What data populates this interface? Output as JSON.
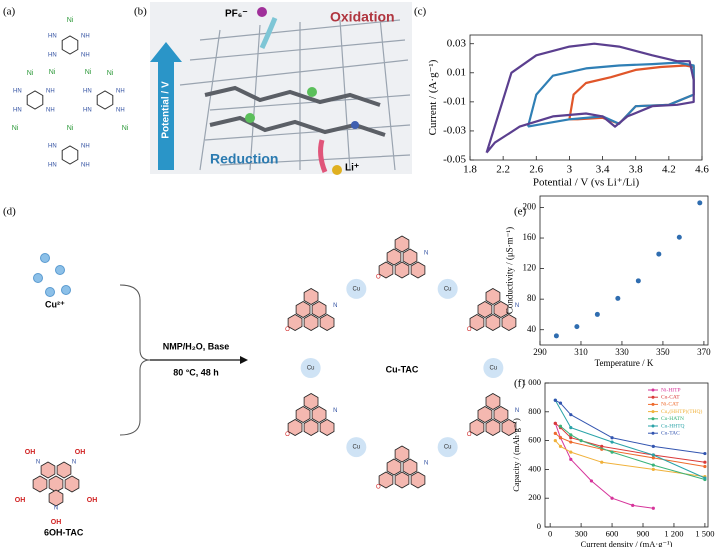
{
  "panels": {
    "a": {
      "label": "(a)",
      "ni": "Ni",
      "nh": "NH",
      "hn": "HN"
    },
    "b": {
      "label": "(b)",
      "anion": "PF₆⁻",
      "oxidation": "Oxidation",
      "axis": "Potential / V",
      "reduction": "Reduction",
      "cation": "Li⁺"
    },
    "c": {
      "label": "(c)"
    },
    "d": {
      "label": "(d)",
      "ion": "Cu²⁺",
      "ligand": "6OH-TAC",
      "conditions": [
        "NMP/H₂O, Base",
        "80 °C, 48 h"
      ],
      "product": "Cu-TAC",
      "oh": "OH",
      "n": "N",
      "cu": "Cu",
      "o": "O"
    },
    "e": {
      "label": "(e)"
    },
    "f": {
      "label": "(f)"
    }
  },
  "chart_data": [
    {
      "type": "line",
      "xlabel": "Potential / V (vs Li⁺/Li)",
      "ylabel": "Current / (A·g⁻¹)",
      "xlim": [
        1.8,
        4.6
      ],
      "ylim": [
        -0.05,
        0.036
      ],
      "xticks": [
        1.8,
        2.2,
        2.6,
        3,
        3.4,
        3.8,
        4.2,
        4.6
      ],
      "yticks": [
        -0.05,
        -0.03,
        -0.01,
        0.01,
        0.03
      ],
      "series": [
        {
          "color": "#e0562a",
          "x": [
            3.0,
            3.05,
            3.2,
            3.5,
            3.8,
            4.1,
            4.4,
            4.5,
            4.5,
            4.2,
            3.8,
            3.6,
            3.4,
            3.1,
            3.0
          ],
          "values": [
            -0.022,
            -0.005,
            0.003,
            0.007,
            0.012,
            0.014,
            0.015,
            0.014,
            -0.005,
            -0.012,
            -0.013,
            -0.025,
            -0.021,
            -0.022,
            -0.022
          ]
        },
        {
          "color": "#2f7fb5",
          "x": [
            2.5,
            2.6,
            2.8,
            3.2,
            3.6,
            4.0,
            4.3,
            4.5,
            4.5,
            4.2,
            3.8,
            3.6,
            3.4,
            3.0,
            2.6,
            2.5
          ],
          "values": [
            -0.027,
            -0.005,
            0.008,
            0.013,
            0.015,
            0.016,
            0.017,
            0.015,
            -0.005,
            -0.012,
            -0.013,
            -0.025,
            -0.02,
            -0.022,
            -0.026,
            -0.027
          ]
        },
        {
          "color": "#5b3f8f",
          "x": [
            2.0,
            2.3,
            2.6,
            3.0,
            3.3,
            3.6,
            4.0,
            4.3,
            4.45,
            4.5,
            4.5,
            4.3,
            4.0,
            3.7,
            3.55,
            3.4,
            3.2,
            2.8,
            2.4,
            2.1,
            2.0
          ],
          "values": [
            -0.045,
            0.01,
            0.022,
            0.028,
            0.03,
            0.028,
            0.022,
            0.018,
            0.018,
            0.005,
            -0.01,
            -0.012,
            -0.013,
            -0.02,
            -0.027,
            -0.02,
            -0.018,
            -0.02,
            -0.027,
            -0.038,
            -0.045
          ]
        }
      ]
    },
    {
      "type": "scatter",
      "xlabel": "Temperature / K",
      "ylabel": "Conductivity / (μS·m⁻¹)",
      "color": "#2f6db0",
      "xlim": [
        290,
        372
      ],
      "ylim": [
        20,
        215
      ],
      "xticks": [
        290,
        310,
        330,
        350,
        370
      ],
      "yticks": [
        40,
        80,
        120,
        160,
        200
      ],
      "x": [
        298,
        308,
        318,
        328,
        338,
        348,
        358,
        368
      ],
      "values": [
        32,
        44,
        60,
        81,
        104,
        139,
        161,
        206
      ]
    },
    {
      "type": "line",
      "xlabel": "Current density / (mA·g⁻¹)",
      "ylabel": "Capacity / (mAh·g⁻¹)",
      "legend": "upper right",
      "xlim": [
        -50,
        1530
      ],
      "ylim": [
        0,
        1000
      ],
      "xticks": [
        0,
        300,
        600,
        900,
        {
          "value": 1200,
          "label": "1 200"
        },
        {
          "value": 1500,
          "label": "1 500"
        }
      ],
      "yticks": [
        0,
        200,
        400,
        600,
        800,
        {
          "value": 1000,
          "label": "1 000"
        }
      ],
      "series": [
        {
          "name": "Ni-HITP",
          "color": "#d6339a",
          "marker": true,
          "x": [
            50,
            100,
            200,
            400,
            600,
            800,
            1000
          ],
          "values": [
            720,
            620,
            470,
            320,
            200,
            150,
            130
          ]
        },
        {
          "name": "Cu-CAT",
          "color": "#d93a3a",
          "marker": true,
          "x": [
            50,
            100,
            200,
            500,
            1000,
            1500
          ],
          "values": [
            720,
            690,
            620,
            560,
            500,
            450
          ]
        },
        {
          "name": "Ni-CAT",
          "color": "#ee6a2c",
          "marker": true,
          "x": [
            50,
            100,
            200,
            500,
            1000,
            1500
          ],
          "values": [
            650,
            620,
            590,
            540,
            480,
            420
          ]
        },
        {
          "name": "Cu₃(HHTP)(THQ)",
          "color": "#f0b13a",
          "marker": true,
          "x": [
            50,
            100,
            200,
            500,
            1000,
            1500
          ],
          "values": [
            600,
            560,
            520,
            450,
            400,
            350
          ]
        },
        {
          "name": "Cu-HATN",
          "color": "#3ab37a",
          "marker": true,
          "x": [
            100,
            200,
            300,
            600,
            1000,
            1500
          ],
          "values": [
            700,
            640,
            600,
            520,
            430,
            330
          ]
        },
        {
          "name": "Cu-HHTQ",
          "color": "#2aa3a8",
          "marker": true,
          "x": [
            50,
            200,
            600,
            1000,
            1500
          ],
          "values": [
            880,
            690,
            590,
            500,
            340
          ]
        },
        {
          "name": "Cu-TAC",
          "color": "#3355b0",
          "marker": true,
          "x": [
            50,
            100,
            200,
            600,
            1000,
            1500
          ],
          "values": [
            880,
            860,
            780,
            620,
            560,
            510
          ]
        }
      ]
    }
  ]
}
